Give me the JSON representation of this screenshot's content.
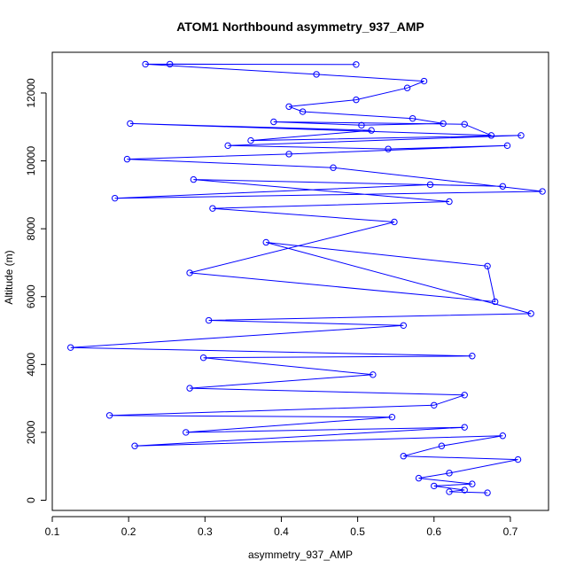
{
  "chart_data": {
    "type": "scatter",
    "title": "ATOM1 Northbound asymmetry_937_AMP",
    "xlabel": "asymmetry_937_AMP",
    "ylabel": "Altitude (m)",
    "xlim": [
      0.1,
      0.75
    ],
    "ylim": [
      -300,
      13200
    ],
    "x_ticks": [
      0.1,
      0.2,
      0.3,
      0.4,
      0.5,
      0.6,
      0.7
    ],
    "x_tick_labels": [
      "0.1",
      "0.2",
      "0.3",
      "0.4",
      "0.5",
      "0.6",
      "0.7"
    ],
    "y_ticks": [
      0,
      2000,
      4000,
      6000,
      8000,
      10000,
      12000
    ],
    "y_tick_labels": [
      "0",
      "2000",
      "4000",
      "6000",
      "8000",
      "10000",
      "12000"
    ],
    "grid": false,
    "series_style": {
      "color": "#0000ff",
      "marker": "open-circle",
      "connected": true
    },
    "series": [
      {
        "x": [
          0.254,
          0.498,
          0.222,
          0.446,
          0.587,
          0.565,
          0.498,
          0.41,
          0.428,
          0.572,
          0.612,
          0.505,
          0.39,
          0.64,
          0.675,
          0.202,
          0.518,
          0.36,
          0.714,
          0.33,
          0.54,
          0.696,
          0.41,
          0.198,
          0.468,
          0.742,
          0.182,
          0.595,
          0.69,
          0.285,
          0.62,
          0.31,
          0.548,
          0.28,
          0.68,
          0.67,
          0.38,
          0.727,
          0.305,
          0.56,
          0.124,
          0.65,
          0.298,
          0.52,
          0.28,
          0.64,
          0.6,
          0.175,
          0.545,
          0.275,
          0.64,
          0.208,
          0.69,
          0.61,
          0.56,
          0.71,
          0.62,
          0.58,
          0.65,
          0.6,
          0.64,
          0.62,
          0.67
        ],
        "y": [
          12850,
          12840,
          12850,
          12550,
          12350,
          12150,
          11800,
          11600,
          11450,
          11250,
          11100,
          11050,
          11150,
          11080,
          10750,
          11100,
          10900,
          10600,
          10750,
          10450,
          10350,
          10450,
          10200,
          10050,
          9800,
          9100,
          8900,
          9300,
          9250,
          9450,
          8800,
          8600,
          8200,
          6700,
          5850,
          6900,
          7600,
          5500,
          5300,
          5150,
          4500,
          4250,
          4200,
          3700,
          3300,
          3100,
          2800,
          2500,
          2450,
          2000,
          2150,
          1600,
          1900,
          1600,
          1300,
          1200,
          800,
          650,
          480,
          420,
          300,
          250,
          220
        ]
      }
    ]
  }
}
